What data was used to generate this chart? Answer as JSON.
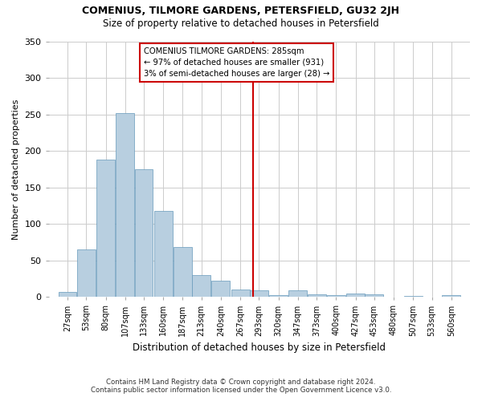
{
  "title": "COMENIUS, TILMORE GARDENS, PETERSFIELD, GU32 2JH",
  "subtitle": "Size of property relative to detached houses in Petersfield",
  "xlabel": "Distribution of detached houses by size in Petersfield",
  "ylabel": "Number of detached properties",
  "bin_labels": [
    "27sqm",
    "53sqm",
    "80sqm",
    "107sqm",
    "133sqm",
    "160sqm",
    "187sqm",
    "213sqm",
    "240sqm",
    "267sqm",
    "293sqm",
    "320sqm",
    "347sqm",
    "373sqm",
    "400sqm",
    "427sqm",
    "453sqm",
    "480sqm",
    "507sqm",
    "533sqm",
    "560sqm"
  ],
  "bar_heights": [
    7,
    65,
    188,
    252,
    175,
    118,
    68,
    30,
    22,
    10,
    9,
    3,
    9,
    4,
    3,
    5,
    4,
    0,
    1,
    0,
    2
  ],
  "bar_color": "#b8cfe0",
  "bar_edge_color": "#6699bb",
  "property_value": 285,
  "vline_color": "#cc0000",
  "annotation_line1": "COMENIUS TILMORE GARDENS: 285sqm",
  "annotation_line2": "← 97% of detached houses are smaller (931)",
  "annotation_line3": "3% of semi-detached houses are larger (28) →",
  "annotation_box_color": "#ffffff",
  "annotation_box_edge_color": "#cc0000",
  "ylim": [
    0,
    350
  ],
  "yticks": [
    0,
    50,
    100,
    150,
    200,
    250,
    300,
    350
  ],
  "background_color": "#ffffff",
  "plot_background_color": "#ffffff",
  "grid_color": "#cccccc",
  "footer_line1": "Contains HM Land Registry data © Crown copyright and database right 2024.",
  "footer_line2": "Contains public sector information licensed under the Open Government Licence v3.0.",
  "label_vals": [
    27,
    53,
    80,
    107,
    133,
    160,
    187,
    213,
    240,
    267,
    293,
    320,
    347,
    373,
    400,
    427,
    453,
    480,
    507,
    533,
    560
  ]
}
